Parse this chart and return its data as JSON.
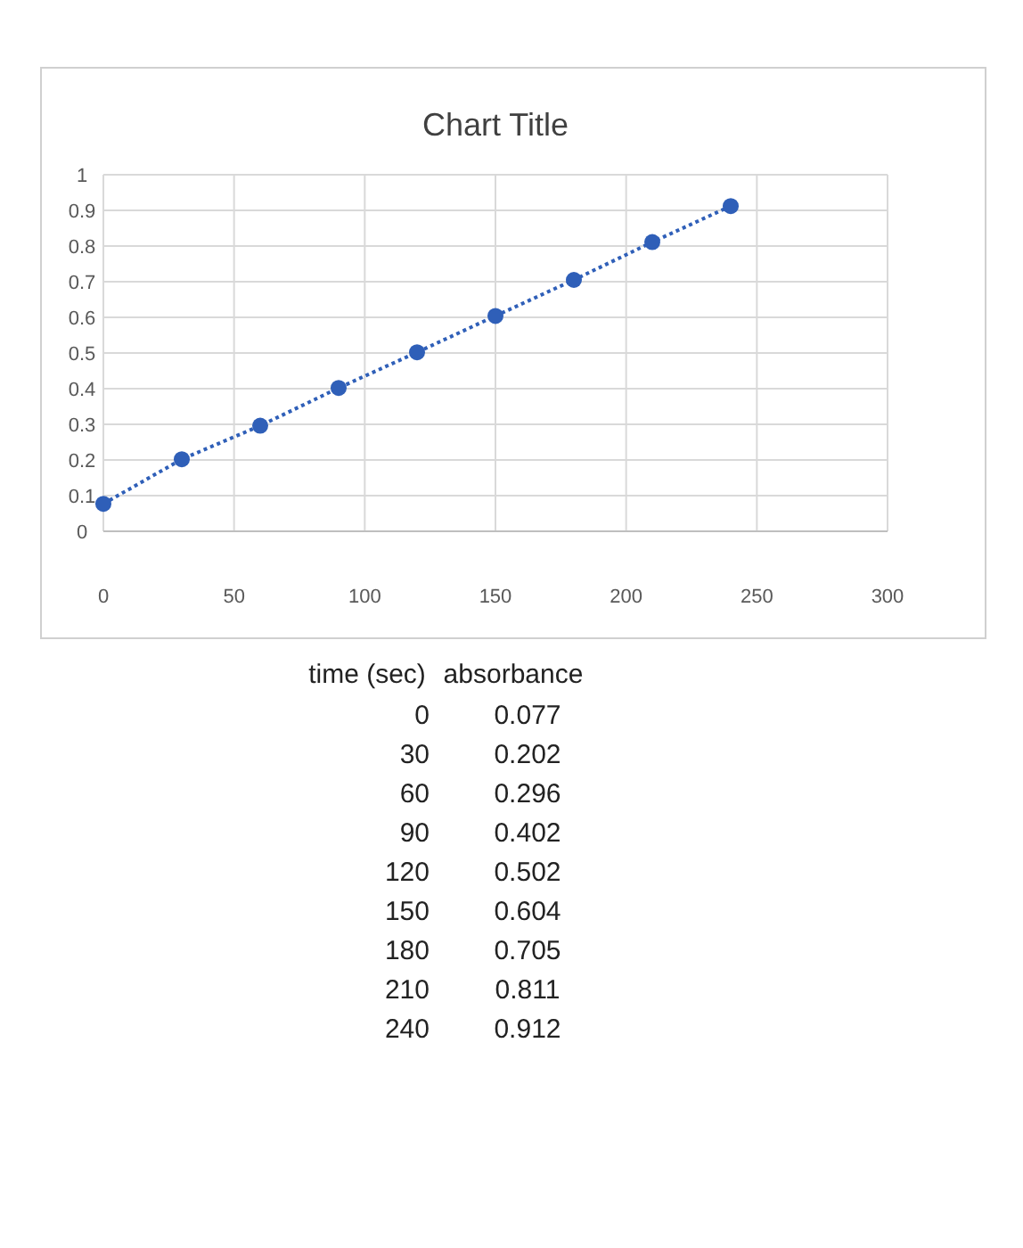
{
  "chart_data": {
    "type": "line",
    "title": "Chart Title",
    "x": [
      0,
      30,
      60,
      90,
      120,
      150,
      180,
      210,
      240
    ],
    "series": [
      {
        "color": "#2f5fb8",
        "values": [
          0.077,
          0.202,
          0.296,
          0.402,
          0.502,
          0.604,
          0.705,
          0.811,
          0.912
        ]
      }
    ],
    "xlim": [
      0,
      300
    ],
    "xticks": [
      0,
      50,
      100,
      150,
      200,
      250,
      300
    ],
    "ylim": [
      0,
      1
    ],
    "yticks": [
      0,
      0.1,
      0.2,
      0.3,
      0.4,
      0.5,
      0.6,
      0.7,
      0.8,
      0.9,
      1
    ],
    "grid": true,
    "marker": "circle",
    "line_style": "dotted",
    "annotations": [
      "time (sec)",
      "absorbance",
      "0",
      "0.077",
      "30",
      "0.202",
      "60",
      "0.296",
      "90",
      "0.402",
      "120",
      "0.502",
      "150",
      "0.604",
      "180",
      "0.705",
      "210",
      "0.811",
      "240",
      "0.912"
    ]
  }
}
